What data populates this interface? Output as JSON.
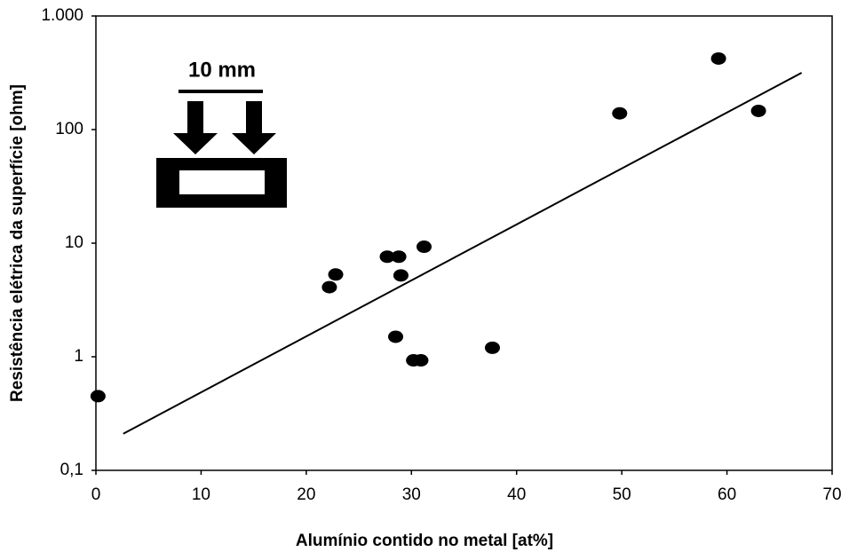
{
  "chart_data": {
    "type": "scatter",
    "x_label": "Alumínio contido no metal [at%]",
    "y_label": "Resistência elétrica da superfície [ohm]",
    "inset_label": "10 mm",
    "x": [
      0.2,
      22.2,
      22.8,
      27.7,
      28.8,
      29.0,
      31.2,
      28.5,
      30.2,
      30.9,
      37.7,
      49.8,
      59.2,
      63.0
    ],
    "y": [
      0.45,
      4.1,
      5.3,
      7.6,
      7.6,
      5.2,
      9.3,
      1.5,
      0.93,
      0.93,
      1.2,
      139,
      422,
      146
    ],
    "color": "#000000",
    "trendline": {
      "x": [
        2.6,
        67.1
      ],
      "y": [
        0.21,
        316
      ]
    },
    "xlim": [
      0,
      70
    ],
    "xticks": [
      0,
      10,
      20,
      30,
      40,
      50,
      60,
      70
    ],
    "ylim": [
      0.1,
      1000
    ],
    "log_y": true,
    "yticks": [
      {
        "value": 0.1,
        "label": "0,1"
      },
      1,
      10,
      100,
      {
        "value": 1000,
        "label": "1.000"
      }
    ]
  }
}
